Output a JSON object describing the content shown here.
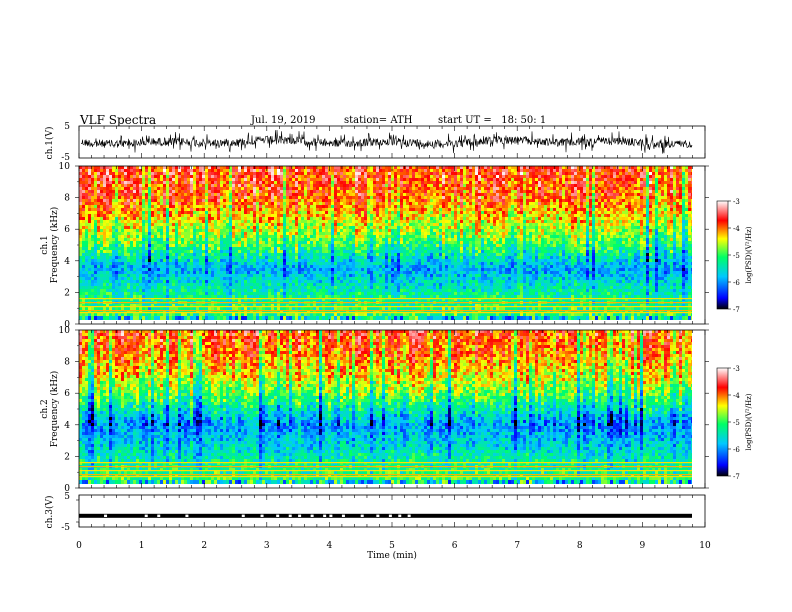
{
  "header": {
    "title": "VLF Spectra",
    "date": "Jul. 19, 2019",
    "station": "station= ATH",
    "start": "start UT =   18: 50: 1"
  },
  "colors": {
    "colormap": [
      "#000000",
      "#0000ff",
      "#00c8ff",
      "#00ff66",
      "#ffff00",
      "#ff0000",
      "#ffffff"
    ],
    "trace": "#000000"
  },
  "chart_data": [
    {
      "type": "line",
      "ylabel": "ch.1(V)",
      "ylim": [
        -5,
        5
      ],
      "yticks": [
        "5",
        "-5"
      ],
      "xlim": [
        0,
        10
      ],
      "description_values": {
        "baseline_V": 0,
        "amplitude_V_approx": 2.5
      }
    },
    {
      "type": "heatmap",
      "ylabel": "ch.1\nFrequency (kHz)",
      "ylabel_lines": [
        "ch.1",
        "Frequency (kHz)"
      ],
      "ylim": [
        0,
        10
      ],
      "yticks": [
        "0",
        "2",
        "4",
        "6",
        "8",
        "10"
      ],
      "xlim": [
        0,
        10
      ],
      "colorbar": {
        "label": "log(PSD)(V²/Hz)",
        "range": [
          -7,
          -3
        ],
        "ticks": [
          "-3",
          "-4",
          "-5",
          "-6",
          "-7"
        ]
      },
      "psd_profile_kHz": [
        {
          "f": 0.5,
          "log_psd": -5.0
        },
        {
          "f": 2,
          "log_psd": -5.3
        },
        {
          "f": 3.5,
          "log_psd": -5.9
        },
        {
          "f": 5,
          "log_psd": -5.0
        },
        {
          "f": 6.5,
          "log_psd": -4.4
        },
        {
          "f": 8,
          "log_psd": -3.9
        },
        {
          "f": 10,
          "log_psd": -3.7
        }
      ]
    },
    {
      "type": "heatmap",
      "ylabel": "ch.2\nFrequency (kHz)",
      "ylabel_lines": [
        "ch.2",
        "Frequency (kHz)"
      ],
      "ylim": [
        0,
        10
      ],
      "yticks": [
        "0",
        "2",
        "4",
        "6",
        "8",
        "10"
      ],
      "xlim": [
        0,
        10
      ],
      "colorbar": {
        "label": "log(PSD)(V²/Hz)",
        "range": [
          -7,
          -3
        ],
        "ticks": [
          "-3",
          "-4",
          "-5",
          "-6",
          "-7"
        ]
      },
      "psd_profile_kHz": [
        {
          "f": 0.5,
          "log_psd": -5.0
        },
        {
          "f": 2,
          "log_psd": -5.4
        },
        {
          "f": 4,
          "log_psd": -6.0
        },
        {
          "f": 5.5,
          "log_psd": -5.1
        },
        {
          "f": 7,
          "log_psd": -4.4
        },
        {
          "f": 8.5,
          "log_psd": -4.0
        },
        {
          "f": 10,
          "log_psd": -3.8
        }
      ]
    },
    {
      "type": "line",
      "ylabel": "ch.3(V)",
      "ylim": [
        -5,
        5
      ],
      "yticks": [
        "5",
        "-5"
      ],
      "xlim": [
        0,
        10
      ],
      "xlabel": "Time (min)",
      "xticks": [
        "0",
        "1",
        "2",
        "3",
        "4",
        "5",
        "6",
        "7",
        "8",
        "9",
        "10"
      ],
      "level_V": -1.5,
      "gaps_min": [
        0.4,
        1.05,
        1.25,
        1.7,
        2.6,
        2.9,
        3.15,
        3.35,
        3.5,
        3.7,
        3.9,
        4.0,
        4.2,
        4.5,
        4.75,
        4.95,
        5.1,
        5.25
      ]
    }
  ]
}
